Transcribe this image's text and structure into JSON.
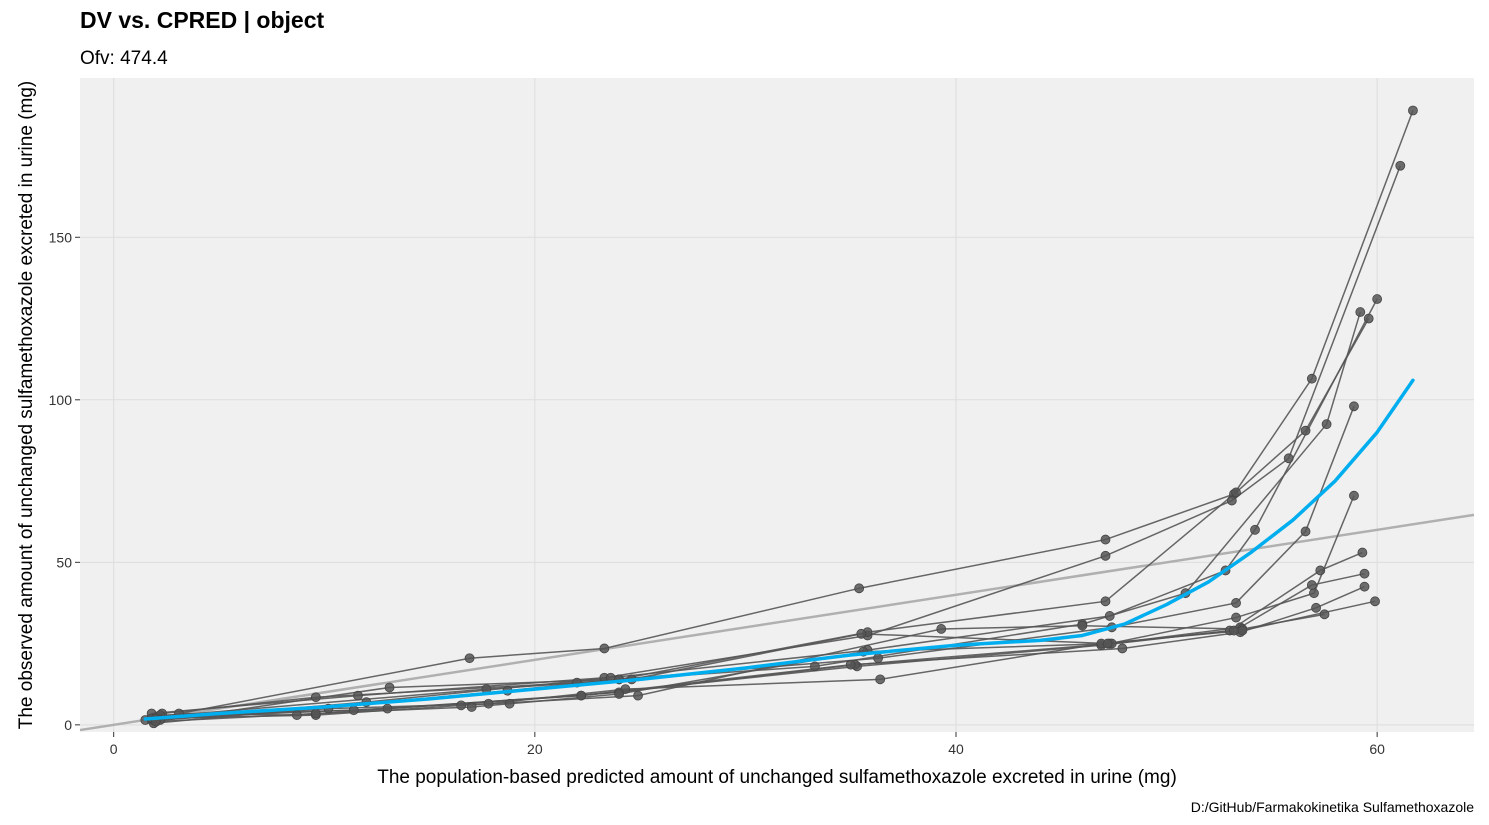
{
  "chart_data": {
    "type": "scatter",
    "title": "DV vs. CPRED | object",
    "subtitle": "Ofv: 474.4",
    "xlabel": "The population-based predicted amount of unchanged sulfamethoxazole excreted in urine (mg)",
    "ylabel": "The observed amount of unchanged sulfamethoxazole excreted in urine (mg)",
    "caption": "D:/GitHub/Farmakokinetika Sulfamethoxazole",
    "xlim": [
      -1.6,
      64.6
    ],
    "ylim": [
      -2.2,
      199
    ],
    "x_ticks": [
      0,
      20,
      40,
      60
    ],
    "y_ticks": [
      0,
      50,
      100,
      150
    ],
    "grid": true,
    "colors": {
      "panel": "#f0f0f0",
      "grid": "#dddddd",
      "points": "#555555",
      "lines": "#555555",
      "smooth": "#00aeef",
      "identity": "#b0b0b0"
    },
    "identity_line": true,
    "subjects": [
      {
        "x": [
          1.5,
          16.9,
          23.3,
          35.4,
          47.1,
          53.2,
          56.9,
          61.7
        ],
        "y": [
          1.5,
          20.5,
          23.5,
          42,
          57,
          71,
          106.5,
          189
        ]
      },
      {
        "x": [
          1.8,
          11.6,
          23.3,
          35.8,
          47.1,
          53.1,
          55.8,
          61.1
        ],
        "y": [
          3.5,
          9,
          14.5,
          27.5,
          52,
          69,
          82,
          172
        ]
      },
      {
        "x": [
          2.0,
          13.1,
          24.0,
          35.8,
          47.1,
          53.3,
          56.6,
          59.6
        ],
        "y": [
          1,
          11.5,
          14,
          28.5,
          38,
          71.5,
          90.5,
          125
        ]
      },
      {
        "x": [
          2.3,
          9.6,
          22.0,
          33.3,
          46.0,
          50.9,
          57.6,
          59.2
        ],
        "y": [
          3.5,
          8.5,
          13,
          18,
          31,
          40.5,
          92.5,
          127
        ]
      },
      {
        "x": [
          1.8,
          12.0,
          23.6,
          35.8,
          47.3,
          52.8,
          54.2,
          60.0
        ],
        "y": [
          1.5,
          7,
          14.5,
          23,
          33.5,
          47.5,
          60,
          131
        ]
      },
      {
        "x": [
          1.9,
          18.7,
          24.0,
          36.3,
          47.4,
          53.3,
          56.6,
          58.9
        ],
        "y": [
          0.5,
          10.5,
          14,
          20.5,
          30,
          37.5,
          59.5,
          98
        ]
      },
      {
        "x": [
          2.1,
          17.7,
          24.6,
          35.5,
          47.3,
          53.3,
          57.0,
          58.9
        ],
        "y": [
          2.5,
          11,
          14,
          28,
          25,
          33,
          40.5,
          70.5
        ]
      },
      {
        "x": [
          2.2,
          11.4,
          22.2,
          35.3,
          46.9,
          53.0,
          57.3,
          59.3
        ],
        "y": [
          3,
          4.5,
          9,
          18,
          24.5,
          29,
          47.5,
          53
        ]
      },
      {
        "x": [
          3.1,
          8.7,
          24.0,
          35.2,
          47.4,
          53.5,
          56.9,
          59.4
        ],
        "y": [
          3.5,
          3,
          10,
          18.5,
          25,
          30,
          43,
          46.5
        ]
      },
      {
        "x": [
          1.8,
          13.0,
          22.2,
          35.0,
          47.9,
          53.5,
          57.1,
          59.4
        ],
        "y": [
          2,
          5,
          9,
          18.5,
          23.5,
          28.5,
          36,
          42.5
        ]
      },
      {
        "x": [
          2.0,
          9.6,
          16.5,
          24.9,
          39.3,
          46.0,
          53.6,
          57.5
        ],
        "y": [
          2,
          3,
          6,
          9,
          29.5,
          30.5,
          29.5,
          34
        ]
      },
      {
        "x": [
          2.2,
          10.2,
          17.8,
          24.3,
          36.4,
          46.9,
          53.6,
          59.9
        ],
        "y": [
          1.5,
          5,
          6.5,
          11,
          14,
          25,
          29,
          38
        ]
      },
      {
        "x": [
          2.0,
          9.6,
          17.0,
          18.8,
          24.0,
          35.6,
          47.2,
          53.2
        ],
        "y": [
          1,
          3.5,
          5.5,
          6.5,
          9.5,
          22.5,
          25,
          29
        ]
      }
    ],
    "smooth": {
      "x": [
        1.5,
        5,
        10,
        15,
        20,
        25,
        30,
        35,
        40,
        44,
        46,
        48,
        50,
        52,
        54,
        56,
        58,
        60,
        61.7
      ],
      "y": [
        1.8,
        3.5,
        5.5,
        8,
        11,
        14,
        17.5,
        21.5,
        24.5,
        26,
        27.5,
        31,
        37,
        44,
        53,
        63,
        75,
        90,
        106
      ]
    }
  }
}
